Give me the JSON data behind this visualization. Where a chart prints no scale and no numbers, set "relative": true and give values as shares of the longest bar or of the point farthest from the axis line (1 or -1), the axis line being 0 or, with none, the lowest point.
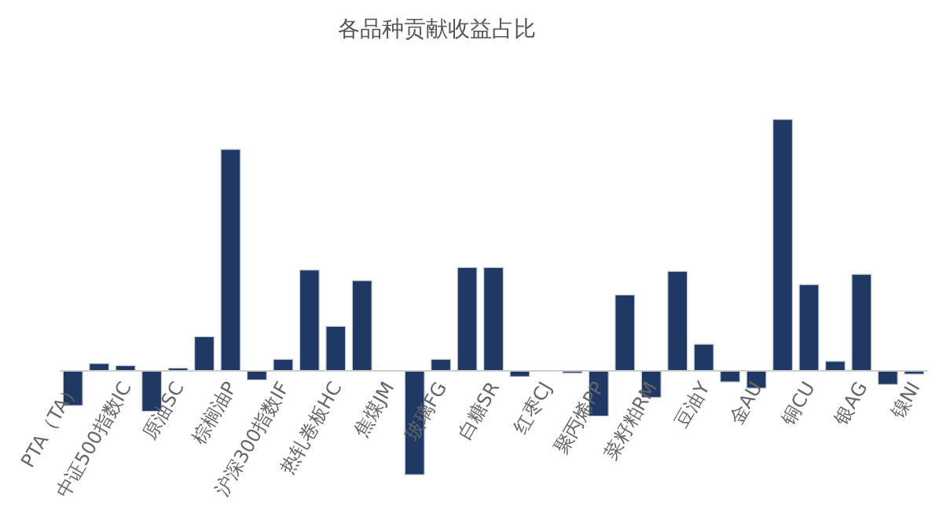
{
  "chart_data": {
    "type": "bar",
    "title": "各品种贡献收益占比",
    "relative": true,
    "color": "#1f3864",
    "categories": [
      "PTA（TA）",
      null,
      "中证500指数IC",
      null,
      "原油SC",
      null,
      "棕榈油P",
      null,
      "沪深300指数IF",
      null,
      "热轧卷板HC",
      null,
      "焦煤JM",
      null,
      "玻璃FG",
      null,
      "白糖SR",
      null,
      "红枣CJ",
      null,
      "聚丙烯PP",
      null,
      "菜籽粕RM",
      null,
      "豆油Y",
      null,
      "金AU",
      null,
      "铜CU",
      null,
      "银AG",
      null,
      "镍NI"
    ],
    "values": [
      -0.138,
      0.029,
      0.021,
      -0.161,
      0.011,
      0.136,
      0.881,
      -0.036,
      0.046,
      0.401,
      0.177,
      0.359,
      null,
      -0.413,
      0.046,
      0.411,
      0.411,
      -0.023,
      null,
      -0.009,
      -0.18,
      0.302,
      -0.106,
      0.396,
      0.106,
      -0.044,
      -0.069,
      1,
      0.343,
      0.038,
      0.384,
      -0.054,
      -0.013
    ]
  }
}
